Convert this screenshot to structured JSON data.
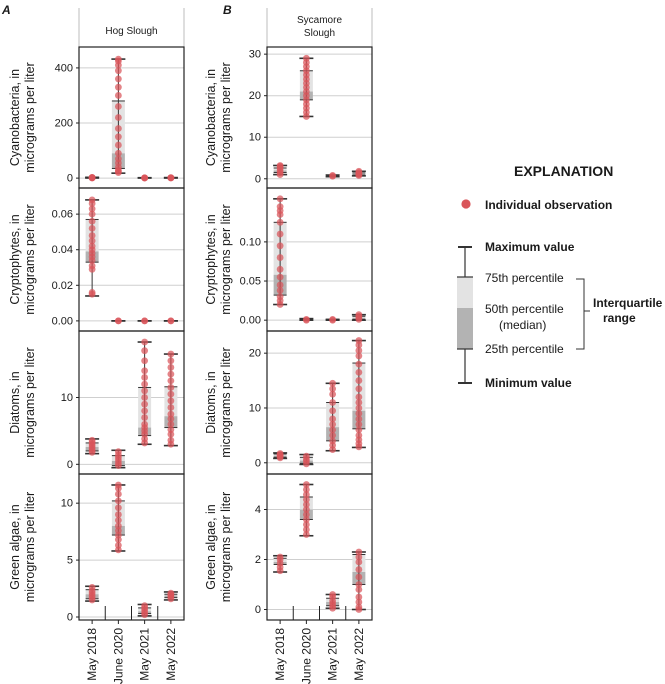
{
  "figure": {
    "panel_letters": [
      "A",
      "B"
    ],
    "site_titles": [
      [
        "Hog Slough"
      ],
      [
        "Sycamore",
        "Slough"
      ]
    ],
    "row_ylabels": [
      [
        "Cyanobacteria, in",
        "micrograms per liter"
      ],
      [
        "Cryptophytes, in",
        "micrograms per liter"
      ],
      [
        "Diatoms, in",
        "micrograms per liter"
      ],
      [
        "Green algae, in",
        "micrograms per liter"
      ]
    ],
    "x_categories": [
      "May 2018",
      "June 2020",
      "May 2021",
      "May 2022"
    ],
    "colors": {
      "point": "#d9555a",
      "box_outer": "#e3e3e3",
      "box_inner": "#b3b3b3",
      "whisker": "#333333",
      "grid": "#cfcfcf",
      "frame": "#222222"
    }
  },
  "explanation": {
    "title": "EXPLANATION",
    "point_label": "Individual observation",
    "max_label": "Maximum value",
    "p75_label": "75th percentile",
    "p50_label": [
      "50th percentile",
      "(median)"
    ],
    "p25_label": "25th percentile",
    "min_label": "Minimum value",
    "iqr_label": [
      "Interquartile",
      "range"
    ]
  },
  "chart_data": [
    {
      "type": "box",
      "panel": "A",
      "site": "Hog Slough",
      "variable": "Cyanobacteria",
      "ylabel": "Cyanobacteria, in micrograms per liter",
      "ylim": [
        -25,
        465
      ],
      "yticks": [
        0,
        200,
        400
      ],
      "categories": [
        "May 2018",
        "June 2020",
        "May 2021",
        "May 2022"
      ],
      "boxes": [
        {
          "min": 0.3,
          "q1": 0.5,
          "median": 1,
          "q3": 2,
          "max": 3,
          "points": [
            0.5,
            1,
            1.5,
            2,
            2.5
          ]
        },
        {
          "min": 18,
          "q1": 35,
          "median": 90,
          "q3": 280,
          "max": 432,
          "points": [
            20,
            25,
            30,
            40,
            55,
            70,
            90,
            120,
            150,
            180,
            220,
            260,
            300,
            330,
            360,
            390,
            410,
            425,
            432
          ]
        },
        {
          "min": 0.2,
          "q1": 0.3,
          "median": 0.5,
          "q3": 1,
          "max": 1.5,
          "points": [
            0.3,
            0.5,
            0.8,
            1.2
          ]
        },
        {
          "min": 0.2,
          "q1": 0.4,
          "median": 0.8,
          "q3": 1.5,
          "max": 2,
          "points": [
            0.4,
            0.8,
            1.2,
            1.8
          ]
        }
      ]
    },
    {
      "type": "box",
      "panel": "A",
      "site": "Hog Slough",
      "variable": "Cryptophytes",
      "ylabel": "Cryptophytes, in micrograms per liter",
      "ylim": [
        -0.004,
        0.073
      ],
      "yticks": [
        0.0,
        0.02,
        0.04,
        0.06
      ],
      "ytick_labels": [
        "0.00",
        "0.02",
        "0.04",
        "0.06"
      ],
      "categories": [
        "May 2018",
        "June 2020",
        "May 2021",
        "May 2022"
      ],
      "boxes": [
        {
          "min": 0.014,
          "q1": 0.033,
          "median": 0.039,
          "q3": 0.057,
          "max": 0.068,
          "points": [
            0.015,
            0.016,
            0.029,
            0.031,
            0.034,
            0.036,
            0.038,
            0.04,
            0.042,
            0.045,
            0.048,
            0.052,
            0.056,
            0.06,
            0.063,
            0.066,
            0.068
          ]
        },
        {
          "min": 0,
          "q1": 0,
          "median": 0,
          "q3": 0,
          "max": 0,
          "points": [
            0,
            0
          ]
        },
        {
          "min": 0,
          "q1": 0,
          "median": 0,
          "q3": 0,
          "max": 0,
          "points": [
            0,
            0
          ]
        },
        {
          "min": 0,
          "q1": 0,
          "median": 0,
          "q3": 0,
          "max": 0,
          "points": [
            0,
            0
          ]
        }
      ]
    },
    {
      "type": "box",
      "panel": "A",
      "site": "Hog Slough",
      "variable": "Diatoms",
      "ylabel": "Diatoms, in micrograms per liter",
      "ylim": [
        -1,
        19.5
      ],
      "yticks": [
        0,
        10
      ],
      "categories": [
        "May 2018",
        "June 2020",
        "May 2021",
        "May 2022"
      ],
      "boxes": [
        {
          "min": 1.6,
          "q1": 2,
          "median": 2.6,
          "q3": 3.2,
          "max": 3.8,
          "points": [
            1.8,
            2.1,
            2.4,
            2.7,
            3,
            3.3,
            3.6
          ]
        },
        {
          "min": -0.5,
          "q1": -0.2,
          "median": 0.5,
          "q3": 1.3,
          "max": 2.1,
          "points": [
            -0.2,
            0.2,
            0.6,
            1,
            1.4,
            1.9
          ]
        },
        {
          "min": 3,
          "q1": 4.3,
          "median": 5.5,
          "q3": 11.5,
          "max": 18.3,
          "points": [
            3.2,
            3.8,
            4.5,
            5,
            5.5,
            6,
            7,
            8,
            9,
            10,
            11,
            12,
            13,
            14,
            15.5,
            17,
            18.3
          ]
        },
        {
          "min": 2.8,
          "q1": 5.5,
          "median": 7.2,
          "q3": 11.6,
          "max": 16.5,
          "points": [
            3,
            3.6,
            4.5,
            5.2,
            6,
            6.8,
            7.5,
            8.5,
            9.5,
            10.5,
            11.5,
            12.5,
            13.5,
            14.5,
            15.5,
            16.5
          ]
        }
      ]
    },
    {
      "type": "box",
      "panel": "A",
      "site": "Hog Slough",
      "variable": "Green algae",
      "ylabel": "Green algae, in micrograms per liter",
      "ylim": [
        0,
        12.3
      ],
      "yticks": [
        0,
        5,
        10
      ],
      "categories": [
        "May 2018",
        "June 2020",
        "May 2021",
        "May 2022"
      ],
      "boxes": [
        {
          "min": 1.4,
          "q1": 1.6,
          "median": 2,
          "q3": 2.4,
          "max": 2.7,
          "points": [
            1.5,
            1.7,
            1.9,
            2.1,
            2.3,
            2.6
          ]
        },
        {
          "min": 5.8,
          "q1": 7.2,
          "median": 8,
          "q3": 10.2,
          "max": 11.6,
          "points": [
            5.9,
            6.3,
            6.8,
            7.2,
            7.6,
            8,
            8.5,
            9,
            9.6,
            10.2,
            10.8,
            11.3,
            11.6
          ]
        },
        {
          "min": 0.1,
          "q1": 0.3,
          "median": 0.5,
          "q3": 0.8,
          "max": 1.1,
          "points": [
            0.2,
            0.4,
            0.6,
            0.8,
            1
          ]
        },
        {
          "min": 1.5,
          "q1": 1.7,
          "median": 1.9,
          "q3": 2,
          "max": 2.2,
          "points": [
            1.6,
            1.8,
            1.9,
            2,
            2.1
          ]
        }
      ]
    },
    {
      "type": "box",
      "panel": "B",
      "site": "Sycamore Slough",
      "variable": "Cyanobacteria",
      "ylabel": "Cyanobacteria, in micrograms per liter",
      "ylim": [
        -1.5,
        31
      ],
      "yticks": [
        0,
        10,
        20,
        30
      ],
      "categories": [
        "May 2018",
        "June 2020",
        "May 2021",
        "May 2022"
      ],
      "boxes": [
        {
          "min": 1,
          "q1": 1.5,
          "median": 2,
          "q3": 2.6,
          "max": 3.2,
          "points": [
            1,
            1.5,
            2,
            2.5,
            3,
            3.2
          ]
        },
        {
          "min": 15,
          "q1": 19,
          "median": 21,
          "q3": 26,
          "max": 29,
          "points": [
            15,
            16,
            17,
            18,
            19,
            20,
            21,
            22,
            23,
            24,
            25,
            26,
            27,
            28,
            29
          ]
        },
        {
          "min": 0.5,
          "q1": 0.6,
          "median": 0.7,
          "q3": 0.8,
          "max": 0.9,
          "points": [
            0.6,
            0.8
          ]
        },
        {
          "min": 0.7,
          "q1": 0.9,
          "median": 1.1,
          "q3": 1.4,
          "max": 1.8,
          "points": [
            0.8,
            1,
            1.2,
            1.5,
            1.8
          ]
        }
      ]
    },
    {
      "type": "box",
      "panel": "B",
      "site": "Sycamore Slough",
      "variable": "Cryptophytes",
      "ylabel": "Cryptophytes, in micrograms per liter",
      "ylim": [
        -0.01,
        0.165
      ],
      "yticks": [
        0.0,
        0.05,
        0.1
      ],
      "ytick_labels": [
        "0.00",
        "0.05",
        "0.10"
      ],
      "categories": [
        "May 2018",
        "June 2020",
        "May 2021",
        "May 2022"
      ],
      "boxes": [
        {
          "min": 0.02,
          "q1": 0.032,
          "median": 0.058,
          "q3": 0.125,
          "max": 0.155,
          "points": [
            0.02,
            0.025,
            0.03,
            0.038,
            0.045,
            0.055,
            0.065,
            0.08,
            0.095,
            0.11,
            0.125,
            0.135,
            0.14,
            0.145,
            0.155
          ]
        },
        {
          "min": 0,
          "q1": 0,
          "median": 0,
          "q3": 0.001,
          "max": 0.002,
          "points": [
            0,
            0.001
          ]
        },
        {
          "min": 0,
          "q1": 0,
          "median": 0,
          "q3": 0.001,
          "max": 0.001,
          "points": [
            0,
            0.001
          ]
        },
        {
          "min": 0,
          "q1": 0.001,
          "median": 0.003,
          "q3": 0.005,
          "max": 0.007,
          "points": [
            0.001,
            0.003,
            0.005,
            0.007
          ]
        }
      ]
    },
    {
      "type": "box",
      "panel": "B",
      "site": "Sycamore Slough",
      "variable": "Diatoms",
      "ylabel": "Diatoms, in micrograms per liter",
      "ylim": [
        -1.5,
        23.5
      ],
      "yticks": [
        0,
        10,
        20
      ],
      "categories": [
        "May 2018",
        "June 2020",
        "May 2021",
        "May 2022"
      ],
      "boxes": [
        {
          "min": 0.8,
          "q1": 1,
          "median": 1.3,
          "q3": 1.6,
          "max": 1.8,
          "points": [
            0.9,
            1.1,
            1.3,
            1.5,
            1.7
          ]
        },
        {
          "min": -0.3,
          "q1": -0.1,
          "median": 0.4,
          "q3": 1,
          "max": 1.5,
          "points": [
            -0.2,
            0.3,
            0.7,
            1.2
          ]
        },
        {
          "min": 2.2,
          "q1": 4,
          "median": 6.5,
          "q3": 11,
          "max": 14.5,
          "points": [
            2.4,
            3.2,
            4,
            5,
            6,
            7,
            8,
            9.5,
            11,
            12.5,
            13.5,
            14.5
          ]
        },
        {
          "min": 2.8,
          "q1": 6.2,
          "median": 9.5,
          "q3": 18.2,
          "max": 22.3,
          "points": [
            2.9,
            3.5,
            4.2,
            5,
            6,
            7,
            8,
            9,
            10,
            11,
            12,
            13.5,
            15,
            16.5,
            18,
            19.5,
            20.5,
            21.5,
            22.3
          ]
        }
      ]
    },
    {
      "type": "box",
      "panel": "B",
      "site": "Sycamore Slough",
      "variable": "Green algae",
      "ylabel": "Green algae, in micrograms per liter",
      "ylim": [
        -0.3,
        5.3
      ],
      "yticks": [
        0,
        2,
        4
      ],
      "categories": [
        "May 2018",
        "June 2020",
        "May 2021",
        "May 2022"
      ],
      "boxes": [
        {
          "min": 1.5,
          "q1": 1.8,
          "median": 1.9,
          "q3": 2.05,
          "max": 2.15,
          "points": [
            1.55,
            1.7,
            1.85,
            2,
            2.1
          ]
        },
        {
          "min": 2.95,
          "q1": 3.6,
          "median": 4,
          "q3": 4.5,
          "max": 5,
          "points": [
            3,
            3.2,
            3.4,
            3.6,
            3.8,
            4,
            4.2,
            4.4,
            4.6,
            4.8,
            5
          ]
        },
        {
          "min": 0.05,
          "q1": 0.15,
          "median": 0.3,
          "q3": 0.45,
          "max": 0.6,
          "points": [
            0.05,
            0.15,
            0.25,
            0.35,
            0.5,
            0.6
          ]
        },
        {
          "min": 0,
          "q1": 1,
          "median": 1.5,
          "q3": 2.2,
          "max": 2.3,
          "points": [
            0,
            0.1,
            0.3,
            0.5,
            0.8,
            1,
            1.3,
            1.6,
            1.9,
            2.1,
            2.3
          ]
        }
      ]
    }
  ]
}
